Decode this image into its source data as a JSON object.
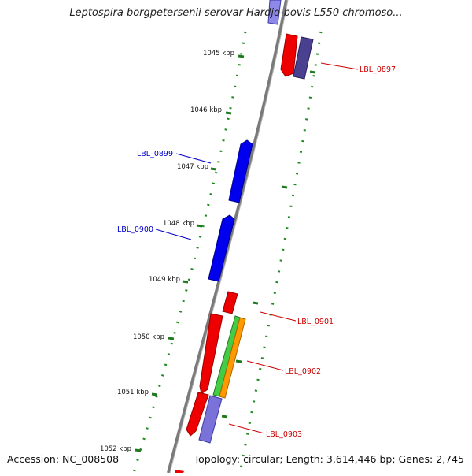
{
  "title": "Leptospira borgpetersenii serovar Hardjo-bovis L550 chromoso...",
  "footer": {
    "accession": "Accession: NC_008508",
    "summary": "Topology: circular; Length: 3,614,446 bp; Genes: 2,745"
  },
  "ticks": [
    {
      "label": "1045 kbp"
    },
    {
      "label": "1046 kbp"
    },
    {
      "label": "1047 kbp"
    },
    {
      "label": "1048 kbp"
    },
    {
      "label": "1049 kbp"
    },
    {
      "label": "1050 kbp"
    },
    {
      "label": "1051 kbp"
    },
    {
      "label": "1052 kbp"
    }
  ],
  "gene_labels": [
    {
      "label": "LBL_0897",
      "color": "#cc0000"
    },
    {
      "label": "LBL_0899",
      "color": "#0000cc"
    },
    {
      "label": "LBL_0900",
      "color": "#0000cc"
    },
    {
      "label": "LBL_0901",
      "color": "#cc0000"
    },
    {
      "label": "LBL_0902",
      "color": "#cc0000"
    },
    {
      "label": "LBL_0903",
      "color": "#cc0000"
    }
  ],
  "colors": {
    "backbone": "#8a8a8a",
    "gc_track": "#1e8a1e",
    "red_gene": "#ee0000",
    "blue_gene": "#0000ee",
    "slate_gene": "#5a4fa8",
    "lavender_gene": "#7a72d8",
    "green_gene": "#44cc44",
    "orange_gene": "#ff9900"
  }
}
